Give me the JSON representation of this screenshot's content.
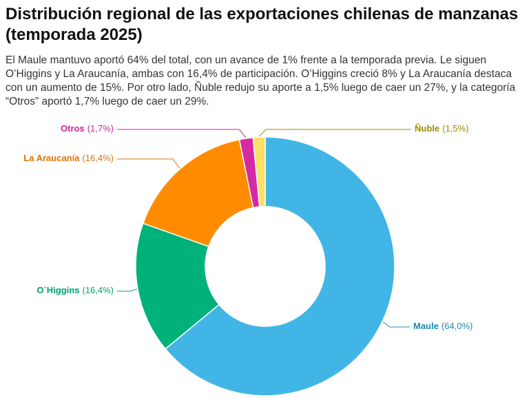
{
  "chart_data": {
    "type": "donut",
    "title": "Distribución regional de las exportaciones chilenas de manzanas (temporada 2025)",
    "subtitle": "El Maule mantuvo aportó 64% del total, con un avance de 1% frente a la temporada previa. Le siguen O’Higgins y La Araucanía, ambas con 16,4% de participación. O’Higgins creció 8% y La Araucanía destaca con un aumento de 15%. Por otro lado, Ñuble redujo su aporte a 1,5% luego de caer un 27%, y la categoría “Otros” aportó 1,7% luego de caer un 29%.",
    "categories": [
      "Maule",
      "O´Higgins",
      "La Araucanía",
      "Otros",
      "Ñuble"
    ],
    "values": [
      64.0,
      16.4,
      16.4,
      1.7,
      1.5
    ],
    "value_labels": [
      "(64,0%)",
      "(16,4%)",
      "(16,4%)",
      "(1,7%)",
      "(1,5%)"
    ],
    "colors": [
      "#41b6e6",
      "#00b27a",
      "#ff8c00",
      "#d62aa5",
      "#ffe066"
    ],
    "label_colors": [
      "#1a8ab5",
      "#00a070",
      "#e07000",
      "#cc2299",
      "#9a8a00"
    ]
  }
}
